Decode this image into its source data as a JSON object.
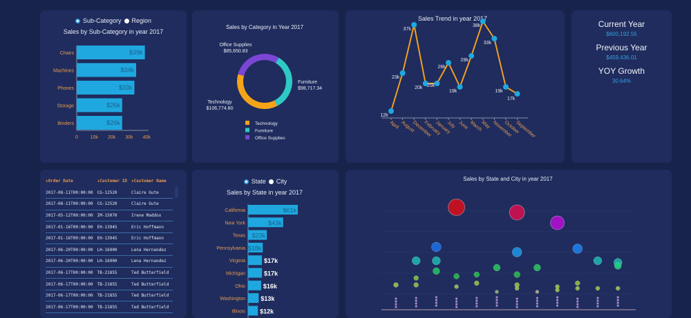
{
  "subcat": {
    "radio": [
      "Sub-Category",
      "Region"
    ],
    "title": "Sales by Sub-Category in year 2017",
    "categories": [
      "Chairs",
      "Machines",
      "Phones",
      "Storage",
      "Binders"
    ],
    "values": [
      39,
      34,
      33,
      26,
      26
    ],
    "labels": [
      "$39k",
      "$34k",
      "$33k",
      "$26k",
      "$26k"
    ],
    "ticks": [
      "0",
      "10k",
      "20k",
      "30k",
      "40k"
    ],
    "bar_color": "#1fa8e0"
  },
  "category": {
    "title": "Sales by Category in Year 2017",
    "slices": [
      {
        "name": "Office Supplies",
        "value": 85650.83,
        "label": "$85,650.83",
        "color": "#7b46d6"
      },
      {
        "name": "Furniture",
        "value": 98717.34,
        "label": "$98,717.34",
        "color": "#2ec9c4"
      },
      {
        "name": "Technology",
        "value": 106774.8,
        "label": "$106,774.80",
        "color": "#f5a41a"
      }
    ],
    "legend": [
      "Technology",
      "Furniture",
      "Office Supplies"
    ]
  },
  "chart_data": {
    "type": "line",
    "title": "Sales Trend in year 2017",
    "categories": [
      "April",
      "August",
      "December",
      "February",
      "January",
      "July",
      "June",
      "March",
      "May",
      "November",
      "October",
      "September"
    ],
    "values": [
      12,
      23,
      37,
      20,
      20,
      26,
      19,
      28,
      38,
      33,
      19,
      17
    ],
    "labels": [
      "12k",
      "23k",
      "37k",
      "20k",
      "20k",
      "26k",
      "19k",
      "28k",
      "38k",
      "33k",
      "19k",
      "17k"
    ],
    "line_color": "#f0a020",
    "point_color": "#1fa8e0"
  },
  "kpi": [
    {
      "label": "Current Year",
      "value": "$600,192.55"
    },
    {
      "label": "Previous Year",
      "value": "$459,436.01"
    },
    {
      "label": "YOY Growth",
      "value": "30.64%"
    }
  ],
  "table": {
    "headers": [
      "↕Order Date",
      "↕Customer ID",
      "↕Customer Name"
    ],
    "rows": [
      [
        "2017-08-11T00:00:00",
        "CG-12520",
        "Claire Gute"
      ],
      [
        "2017-08-11T00:00:00",
        "CG-12520",
        "Claire Gute"
      ],
      [
        "2017-05-12T00:00:00",
        "IM-15070",
        "Irene Maddox"
      ],
      [
        "2017-01-16T00:00:00",
        "EH-13945",
        "Eric Hoffmann"
      ],
      [
        "2017-01-16T00:00:00",
        "EH-13945",
        "Eric Hoffmann"
      ],
      [
        "2017-06-20T00:00:00",
        "LH-16900",
        "Lena Hernandez"
      ],
      [
        "2017-06-20T00:00:00",
        "LH-16900",
        "Lena Hernandez"
      ],
      [
        "2017-06-17T00:00:00",
        "TB-21855",
        "Ted Butterfield"
      ],
      [
        "2017-06-17T00:00:00",
        "TB-21855",
        "Ted Butterfield"
      ],
      [
        "2017-06-17T00:00:00",
        "TB-21855",
        "Ted Butterfield"
      ],
      [
        "2017-06-17T00:00:00",
        "TB-21855",
        "Ted Butterfield"
      ]
    ]
  },
  "state": {
    "radio": [
      "State",
      "City"
    ],
    "title": "Sales by State in year 2017",
    "categories": [
      "California",
      "New York",
      "Texas",
      "Pennsylvania",
      "Virginia",
      "Michigan",
      "Ohio",
      "Washington",
      "Illinois"
    ],
    "values": [
      61,
      43,
      23,
      18,
      17,
      17,
      16,
      13,
      12
    ],
    "labels": [
      "$61k",
      "$43k",
      "$23k",
      "$18k",
      "$17k",
      "$17k",
      "$16k",
      "$13k",
      "$12k"
    ]
  },
  "bubble": {
    "title": "Sales by State and City in year 2017",
    "points": [
      {
        "col": 3,
        "value": 59,
        "size": 12,
        "color": "#d0101e"
      },
      {
        "col": 6,
        "value": 56,
        "size": 11,
        "color": "#d01050"
      },
      {
        "col": 8,
        "value": 50,
        "size": 10,
        "color": "#b010d0"
      },
      {
        "col": 2,
        "value": 36,
        "size": 7,
        "color": "#1e6ee0"
      },
      {
        "col": 6,
        "value": 33,
        "size": 7,
        "color": "#2090e0"
      },
      {
        "col": 9,
        "value": 35,
        "size": 7,
        "color": "#1e7ee8"
      },
      {
        "col": 1,
        "value": 28,
        "size": 6,
        "color": "#20b0b0"
      },
      {
        "col": 2,
        "value": 28,
        "size": 6,
        "color": "#20b0b0"
      },
      {
        "col": 10,
        "value": 28,
        "size": 6,
        "color": "#20b0b0"
      },
      {
        "col": 11,
        "value": 27,
        "size": 6,
        "color": "#20b0a8"
      },
      {
        "col": 11,
        "value": 25,
        "size": 5,
        "color": "#20d080"
      },
      {
        "col": 2,
        "value": 22,
        "size": 5,
        "color": "#20c060"
      },
      {
        "col": 3,
        "value": 19,
        "size": 4,
        "color": "#28b850"
      },
      {
        "col": 4,
        "value": 20,
        "size": 4,
        "color": "#28b850"
      },
      {
        "col": 5,
        "value": 24,
        "size": 5,
        "color": "#28c060"
      },
      {
        "col": 6,
        "value": 20,
        "size": 4.5,
        "color": "#28b850"
      },
      {
        "col": 7,
        "value": 24,
        "size": 5,
        "color": "#28c060"
      },
      {
        "col": 0,
        "value": 14,
        "size": 3.5,
        "color": "#a0c050"
      },
      {
        "col": 1,
        "value": 18,
        "size": 3.5,
        "color": "#80c040"
      },
      {
        "col": 1,
        "value": 14,
        "size": 3.5,
        "color": "#90c048"
      },
      {
        "col": 3,
        "value": 13,
        "size": 3,
        "color": "#a0c050"
      },
      {
        "col": 4,
        "value": 15,
        "size": 3.5,
        "color": "#90c048"
      },
      {
        "col": 5,
        "value": 10,
        "size": 2.5,
        "color": "#a0b070"
      },
      {
        "col": 6,
        "value": 14,
        "size": 3.5,
        "color": "#90c048"
      },
      {
        "col": 6,
        "value": 12,
        "size": 3,
        "color": "#a0c050"
      },
      {
        "col": 7,
        "value": 10,
        "size": 2.5,
        "color": "#b0b080"
      },
      {
        "col": 8,
        "value": 13,
        "size": 3,
        "color": "#a0c050"
      },
      {
        "col": 8,
        "value": 11,
        "size": 3,
        "color": "#a0c050"
      },
      {
        "col": 9,
        "value": 15,
        "size": 3.5,
        "color": "#90c048"
      },
      {
        "col": 9,
        "value": 12,
        "size": 3,
        "color": "#a0c050"
      },
      {
        "col": 10,
        "value": 12,
        "size": 3,
        "color": "#a0c050"
      },
      {
        "col": 11,
        "value": 12,
        "size": 3,
        "color": "#a0c050"
      }
    ]
  }
}
